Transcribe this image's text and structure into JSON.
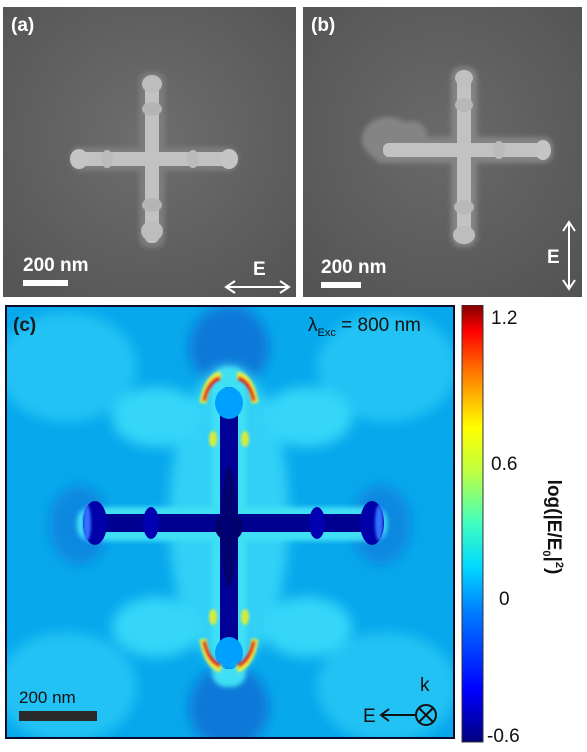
{
  "panels": {
    "a": {
      "label": "(a)",
      "scalebar": "200 nm",
      "polarization": "E"
    },
    "b": {
      "label": "(b)",
      "scalebar": "200 nm",
      "polarization": "E"
    },
    "c": {
      "label": "(c)",
      "excitation": "λ",
      "excitation_sub": "Exc",
      "excitation_value": " = 800 nm",
      "scalebar": "200 nm",
      "polarization": "E",
      "wavevector": "k"
    }
  },
  "colorbar": {
    "label": "log(|E/E",
    "label_sub": "0",
    "label_end": "|",
    "label_sup": "2",
    "label_close": ")",
    "ticks": [
      "1.2",
      "0.6",
      "0",
      "-0.6"
    ],
    "min": -0.6,
    "max": 1.2,
    "colormap": "jet",
    "colors": [
      "#00007f",
      "#0000ff",
      "#007fff",
      "#00ffff",
      "#7fff7f",
      "#ffff00",
      "#ff7f00",
      "#ff0000",
      "#7f0000"
    ]
  }
}
